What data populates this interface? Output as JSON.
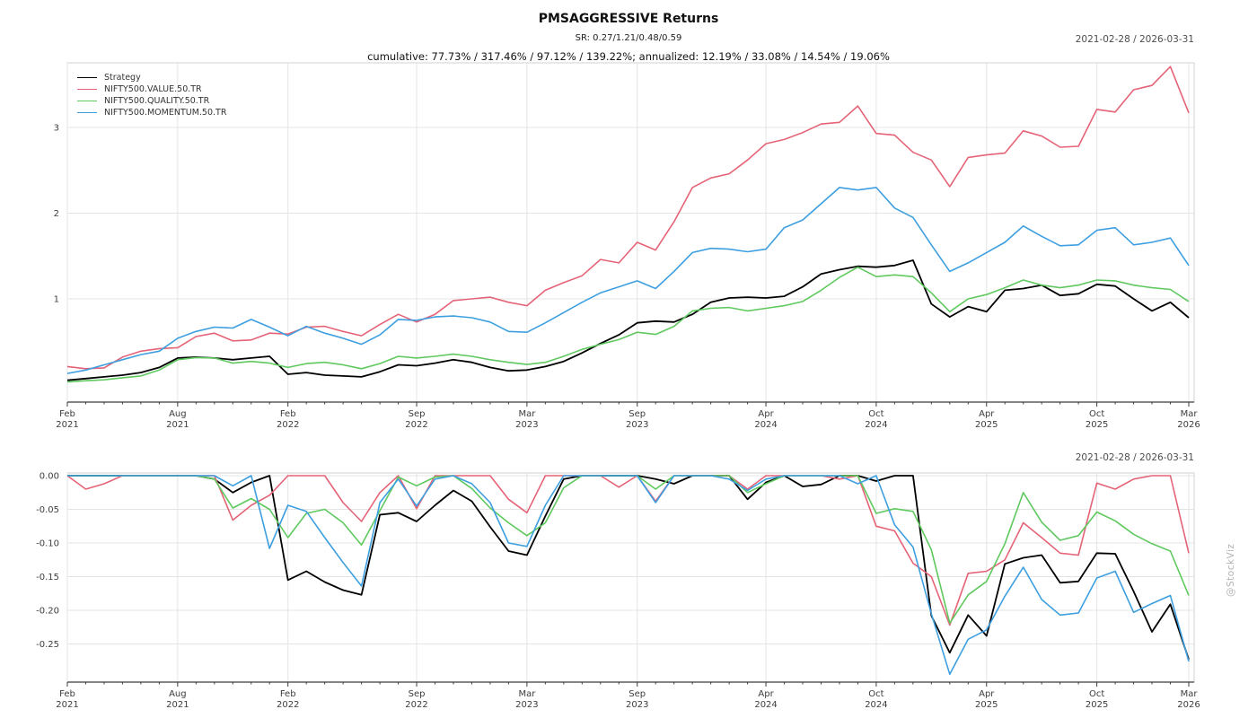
{
  "header": {
    "title": "PMSAGGRESSIVE Returns",
    "subtitle": "SR: 0.27/1.21/0.48/0.59",
    "stats_line": "cumulative: 77.73% / 317.46% / 97.12% / 139.22%; annualized: 12.19% / 33.08% / 14.54% / 19.06%"
  },
  "date_range_top": "2021-02-28 / 2026-03-31",
  "date_range_bottom": "2021-02-28 / 2026-03-31",
  "watermark": "@StockViz",
  "colors": {
    "strategy": "#000000",
    "value": "#e56377",
    "quality": "#5fc95f",
    "momentum": "#3d9fe0",
    "grid": "#e4e4e4",
    "frame": "#d0d0d0",
    "axis": "#3c3c3c",
    "tick_text": "#3c3c3c"
  },
  "chart_data": [
    {
      "type": "line",
      "title": "cumulative returns",
      "x_months": [
        "2021-02",
        "2021-03",
        "2021-04",
        "2021-05",
        "2021-06",
        "2021-07",
        "2021-08",
        "2021-09",
        "2021-10",
        "2021-11",
        "2021-12",
        "2022-01",
        "2022-02",
        "2022-03",
        "2022-04",
        "2022-05",
        "2022-06",
        "2022-07",
        "2022-08",
        "2022-09",
        "2022-10",
        "2022-11",
        "2022-12",
        "2023-01",
        "2023-02",
        "2023-03",
        "2023-04",
        "2023-05",
        "2023-06",
        "2023-07",
        "2023-08",
        "2023-09",
        "2023-10",
        "2023-11",
        "2023-12",
        "2024-01",
        "2024-02",
        "2024-03",
        "2024-04",
        "2024-05",
        "2024-06",
        "2024-07",
        "2024-08",
        "2024-09",
        "2024-10",
        "2024-11",
        "2024-12",
        "2025-01",
        "2025-02",
        "2025-03",
        "2025-04",
        "2025-05",
        "2025-06",
        "2025-07",
        "2025-08",
        "2025-09",
        "2025-10",
        "2025-11",
        "2025-12",
        "2026-01",
        "2026-02",
        "2026-03"
      ],
      "xticks": [
        {
          "index": 0,
          "label": "Feb 2021"
        },
        {
          "index": 6,
          "label": "Aug 2021"
        },
        {
          "index": 12,
          "label": "Feb 2022"
        },
        {
          "index": 19,
          "label": "Sep 2022"
        },
        {
          "index": 25,
          "label": "Mar 2023"
        },
        {
          "index": 31,
          "label": "Sep 2023"
        },
        {
          "index": 38,
          "label": "Apr 2024"
        },
        {
          "index": 44,
          "label": "Oct 2024"
        },
        {
          "index": 50,
          "label": "Apr 2025"
        },
        {
          "index": 56,
          "label": "Oct 2025"
        },
        {
          "index": 61,
          "label": "Mar 2026"
        }
      ],
      "yticks": [
        1,
        2,
        3
      ],
      "ytick_labels": [
        "1",
        "2",
        "3"
      ],
      "ylim": [
        -0.08,
        3.85
      ],
      "series": [
        {
          "name": "Strategy",
          "color_key": "strategy",
          "values": [
            0.05,
            0.07,
            0.09,
            0.11,
            0.14,
            0.2,
            0.31,
            0.32,
            0.31,
            0.29,
            0.31,
            0.33,
            0.12,
            0.14,
            0.11,
            0.1,
            0.09,
            0.15,
            0.23,
            0.22,
            0.25,
            0.29,
            0.26,
            0.2,
            0.16,
            0.17,
            0.21,
            0.27,
            0.37,
            0.48,
            0.58,
            0.72,
            0.74,
            0.73,
            0.82,
            0.96,
            1.01,
            1.02,
            1.01,
            1.03,
            1.14,
            1.29,
            1.34,
            1.38,
            1.37,
            1.39,
            1.45,
            0.94,
            0.79,
            0.91,
            0.85,
            1.1,
            1.12,
            1.16,
            1.04,
            1.06,
            1.17,
            1.15,
            1.0,
            0.86,
            0.96,
            0.78
          ]
        },
        {
          "name": "NIFTY500.VALUE.50.TR",
          "color_key": "value",
          "values": [
            0.21,
            0.185,
            0.195,
            0.32,
            0.39,
            0.42,
            0.43,
            0.56,
            0.6,
            0.51,
            0.52,
            0.6,
            0.59,
            0.67,
            0.68,
            0.62,
            0.57,
            0.7,
            0.82,
            0.73,
            0.82,
            0.98,
            1.0,
            1.02,
            0.96,
            0.92,
            1.1,
            1.19,
            1.27,
            1.46,
            1.42,
            1.66,
            1.57,
            1.9,
            2.3,
            2.41,
            2.46,
            2.62,
            2.81,
            2.86,
            2.94,
            3.04,
            3.06,
            3.25,
            2.93,
            2.91,
            2.71,
            2.62,
            2.31,
            2.65,
            2.68,
            2.7,
            2.96,
            2.9,
            2.77,
            2.78,
            3.21,
            3.18,
            3.44,
            3.49,
            3.71,
            3.17
          ]
        },
        {
          "name": "NIFTY500.QUALITY.50.TR",
          "color_key": "quality",
          "values": [
            0.03,
            0.045,
            0.055,
            0.08,
            0.1,
            0.17,
            0.29,
            0.315,
            0.31,
            0.25,
            0.27,
            0.25,
            0.2,
            0.245,
            0.26,
            0.23,
            0.185,
            0.245,
            0.33,
            0.31,
            0.33,
            0.355,
            0.33,
            0.29,
            0.26,
            0.235,
            0.26,
            0.33,
            0.41,
            0.47,
            0.525,
            0.61,
            0.585,
            0.68,
            0.86,
            0.89,
            0.9,
            0.86,
            0.89,
            0.92,
            0.97,
            1.1,
            1.25,
            1.37,
            1.26,
            1.28,
            1.26,
            1.07,
            0.85,
            1.0,
            1.05,
            1.13,
            1.22,
            1.16,
            1.13,
            1.16,
            1.22,
            1.21,
            1.16,
            1.13,
            1.11,
            0.97
          ]
        },
        {
          "name": "NIFTY500.MOMENTUM.50.TR",
          "color_key": "momentum",
          "values": [
            0.13,
            0.17,
            0.23,
            0.29,
            0.35,
            0.39,
            0.54,
            0.62,
            0.67,
            0.66,
            0.76,
            0.67,
            0.57,
            0.68,
            0.6,
            0.54,
            0.47,
            0.58,
            0.76,
            0.75,
            0.79,
            0.8,
            0.78,
            0.73,
            0.62,
            0.61,
            0.72,
            0.84,
            0.96,
            1.07,
            1.14,
            1.21,
            1.12,
            1.32,
            1.54,
            1.59,
            1.58,
            1.55,
            1.58,
            1.83,
            1.92,
            2.11,
            2.3,
            2.27,
            2.3,
            2.06,
            1.95,
            1.63,
            1.32,
            1.42,
            1.54,
            1.66,
            1.85,
            1.73,
            1.62,
            1.63,
            1.8,
            1.83,
            1.63,
            1.66,
            1.71,
            1.39
          ]
        }
      ]
    },
    {
      "type": "line",
      "title": "drawdowns",
      "xticks": [
        {
          "index": 0,
          "label": "Feb 2021"
        },
        {
          "index": 6,
          "label": "Aug 2021"
        },
        {
          "index": 12,
          "label": "Feb 2022"
        },
        {
          "index": 19,
          "label": "Sep 2022"
        },
        {
          "index": 25,
          "label": "Mar 2023"
        },
        {
          "index": 31,
          "label": "Sep 2023"
        },
        {
          "index": 38,
          "label": "Apr 2024"
        },
        {
          "index": 44,
          "label": "Oct 2024"
        },
        {
          "index": 50,
          "label": "Apr 2025"
        },
        {
          "index": 56,
          "label": "Oct 2025"
        },
        {
          "index": 61,
          "label": "Mar 2026"
        }
      ],
      "yticks": [
        0,
        -0.05,
        -0.1,
        -0.15,
        -0.2,
        -0.25
      ],
      "ytick_labels": [
        "0.00",
        "-0.05",
        "-0.10",
        "-0.15",
        "-0.20",
        "-0.25"
      ],
      "ylim": [
        -0.307,
        0.004
      ],
      "series": [
        {
          "name": "Strategy",
          "color_key": "strategy",
          "values": [
            0,
            0,
            0,
            0,
            0,
            0,
            0,
            0,
            -0.005,
            -0.025,
            -0.01,
            0,
            -0.155,
            -0.142,
            -0.158,
            -0.17,
            -0.177,
            -0.058,
            -0.055,
            -0.068,
            -0.044,
            -0.022,
            -0.038,
            -0.076,
            -0.112,
            -0.118,
            -0.06,
            -0.005,
            0,
            0,
            0,
            0,
            -0.005,
            -0.012,
            0,
            0,
            0,
            -0.035,
            -0.01,
            0,
            -0.016,
            -0.013,
            0,
            0,
            -0.008,
            0,
            0,
            -0.208,
            -0.263,
            -0.207,
            -0.238,
            -0.131,
            -0.122,
            -0.118,
            -0.159,
            -0.157,
            -0.115,
            -0.116,
            -0.172,
            -0.232,
            -0.191,
            -0.273
          ]
        },
        {
          "name": "NIFTY500.VALUE.50.TR",
          "color_key": "value",
          "values": [
            0,
            -0.02,
            -0.012,
            0,
            0,
            0,
            0,
            0,
            0,
            -0.066,
            -0.044,
            -0.029,
            0,
            0,
            0,
            -0.04,
            -0.068,
            -0.025,
            0,
            -0.049,
            0,
            0,
            0,
            0,
            -0.035,
            -0.055,
            0,
            0,
            0,
            0,
            -0.017,
            0,
            -0.038,
            0,
            0,
            0,
            0,
            -0.02,
            0,
            0,
            0,
            0,
            -0.005,
            0,
            -0.075,
            -0.082,
            -0.13,
            -0.15,
            -0.222,
            -0.145,
            -0.142,
            -0.125,
            -0.07,
            -0.092,
            -0.115,
            -0.118,
            -0.011,
            -0.02,
            -0.005,
            0,
            0,
            -0.115
          ]
        },
        {
          "name": "NIFTY500.QUALITY.50.TR",
          "color_key": "quality",
          "values": [
            0,
            0,
            0,
            0,
            0,
            0,
            0,
            0,
            -0.005,
            -0.048,
            -0.034,
            -0.05,
            -0.092,
            -0.056,
            -0.05,
            -0.07,
            -0.103,
            -0.052,
            -0.002,
            -0.015,
            -0.002,
            0,
            -0.019,
            -0.048,
            -0.07,
            -0.089,
            -0.07,
            -0.018,
            0,
            0,
            0,
            0,
            -0.02,
            0,
            0,
            0,
            0,
            -0.025,
            -0.012,
            0,
            0,
            0,
            0,
            0,
            -0.056,
            -0.049,
            -0.053,
            -0.11,
            -0.219,
            -0.177,
            -0.157,
            -0.101,
            -0.025,
            -0.069,
            -0.096,
            -0.089,
            -0.054,
            -0.067,
            -0.087,
            -0.101,
            -0.112,
            -0.178
          ]
        },
        {
          "name": "NIFTY500.MOMENTUM.50.TR",
          "color_key": "momentum",
          "values": [
            0,
            0,
            0,
            0,
            0,
            0,
            0,
            0,
            0,
            -0.015,
            0,
            -0.108,
            -0.044,
            -0.053,
            -0.092,
            -0.129,
            -0.164,
            -0.04,
            -0.005,
            -0.045,
            -0.005,
            0,
            -0.012,
            -0.04,
            -0.1,
            -0.105,
            -0.044,
            0,
            0,
            0,
            0,
            0,
            -0.04,
            0,
            0,
            0,
            -0.005,
            -0.022,
            -0.005,
            0,
            0,
            0,
            0,
            -0.012,
            0,
            -0.073,
            -0.106,
            -0.205,
            -0.295,
            -0.243,
            -0.229,
            -0.179,
            -0.136,
            -0.184,
            -0.207,
            -0.204,
            -0.152,
            -0.142,
            -0.203,
            -0.19,
            -0.178,
            -0.276
          ]
        }
      ]
    }
  ]
}
